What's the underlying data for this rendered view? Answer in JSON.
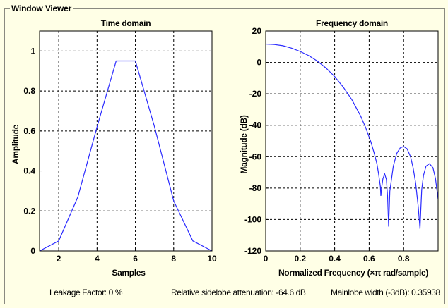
{
  "window_title": "Window Viewer",
  "status": {
    "leakage": "Leakage Factor: 0 %",
    "sidelobe": "Relative sidelobe attenuation: -64.6 dB",
    "mainlobe": "Mainlobe width (-3dB): 0.35938"
  },
  "chart_data": [
    {
      "type": "line",
      "title": "Time domain",
      "xlabel": "Samples",
      "ylabel": "Amplitude",
      "xlim": [
        1,
        10
      ],
      "ylim": [
        0,
        1.1
      ],
      "xticks": [
        2,
        4,
        6,
        8,
        10
      ],
      "yticks": [
        0,
        0.2,
        0.4,
        0.6,
        0.8,
        1
      ],
      "xtick_labels": [
        "2",
        "4",
        "6",
        "8",
        "10"
      ],
      "ytick_labels": [
        "0",
        "0.2",
        "0.4",
        "0.6",
        "0.8",
        "1"
      ],
      "grid": true,
      "color": "#2a2aff",
      "x": [
        1,
        2,
        3,
        4,
        5,
        6,
        7,
        8,
        9,
        10
      ],
      "y": [
        0,
        0.05,
        0.27,
        0.62,
        0.95,
        0.95,
        0.62,
        0.25,
        0.05,
        0
      ]
    },
    {
      "type": "line",
      "title": "Frequency domain",
      "xlabel": "Normalized Frequency  (×π rad/sample)",
      "ylabel": "Magnitude (dB)",
      "xlim": [
        0,
        1
      ],
      "ylim": [
        -120,
        20
      ],
      "xticks": [
        0,
        0.2,
        0.4,
        0.6,
        0.8
      ],
      "yticks": [
        20,
        0,
        -20,
        -40,
        -60,
        -80,
        -100,
        -120
      ],
      "xtick_labels": [
        "0",
        "0.2",
        "0.4",
        "0.6",
        "0.8"
      ],
      "ytick_labels": [
        "20",
        "0",
        "-20",
        "-40",
        "-60",
        "-80",
        "-100",
        "-120"
      ],
      "grid": true,
      "color": "#2a2aff",
      "x": [
        0,
        0.05,
        0.1,
        0.15,
        0.2,
        0.25,
        0.3,
        0.35,
        0.4,
        0.45,
        0.5,
        0.55,
        0.58,
        0.61,
        0.63,
        0.645,
        0.655,
        0.665,
        0.668,
        0.672,
        0.68,
        0.69,
        0.7,
        0.707,
        0.713,
        0.72,
        0.74,
        0.76,
        0.78,
        0.8,
        0.82,
        0.84,
        0.855,
        0.87,
        0.885,
        0.895,
        0.9,
        0.905,
        0.915,
        0.93,
        0.95,
        0.97,
        0.985,
        1.0
      ],
      "y": [
        11.7,
        11.4,
        10.6,
        9.1,
        7.0,
        4.3,
        0.8,
        -3.6,
        -9.0,
        -15.7,
        -23.8,
        -34.0,
        -41.5,
        -50.5,
        -58.0,
        -64.5,
        -71.0,
        -79.0,
        -85.0,
        -80.0,
        -74.0,
        -71.0,
        -74.5,
        -85.0,
        -104.5,
        -82.0,
        -66.0,
        -58.0,
        -54.5,
        -53.5,
        -55.0,
        -60.0,
        -67.0,
        -77.0,
        -92.0,
        -106.0,
        -93.0,
        -81.0,
        -72.0,
        -66.0,
        -64.5,
        -67.0,
        -74.0,
        -87.0
      ]
    }
  ]
}
